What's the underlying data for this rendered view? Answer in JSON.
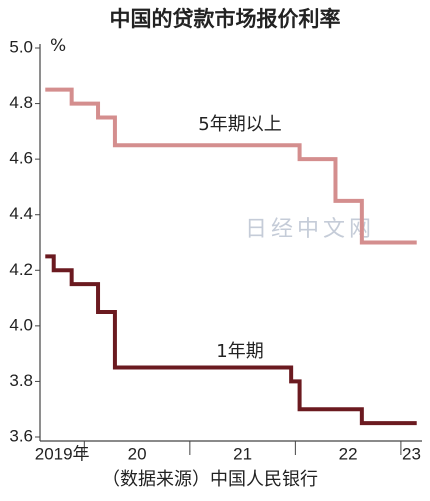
{
  "chart_data": {
    "type": "step",
    "title": "中国的贷款市场报价利率",
    "y_unit": "%",
    "source": "（数据来源）中国人民银行",
    "watermark": "日经中文网",
    "ylim": [
      3.6,
      5.0
    ],
    "yticks": [
      3.6,
      3.8,
      {
        "value": 4,
        "label": "4.0"
      },
      4.2,
      4.4,
      4.6,
      4.8,
      {
        "value": 5,
        "label": "5.0"
      }
    ],
    "xlim": [
      2019.58,
      2023.2
    ],
    "xticks": [
      2020,
      2021,
      2022,
      2023
    ],
    "xtick_labels": [
      {
        "value": 2019.79,
        "label": "2019年"
      },
      {
        "value": 2020.5,
        "label": "20"
      },
      {
        "value": 2021.5,
        "label": "21"
      },
      {
        "value": 2022.5,
        "label": "22"
      },
      {
        "value": 2023.1,
        "label": "23"
      }
    ],
    "series": [
      {
        "name": "5年期以上",
        "color": "#d48e8e",
        "x": [
          2019.63,
          2019.88,
          2020.13,
          2020.29,
          2022.04,
          2022.38,
          2022.63,
          2023.15
        ],
        "values": [
          4.85,
          4.8,
          4.75,
          4.65,
          4.6,
          4.45,
          4.3,
          4.3
        ]
      },
      {
        "name": "1年期",
        "color": "#6b1a20",
        "x": [
          2019.63,
          2019.71,
          2019.88,
          2020.13,
          2020.29,
          2021.96,
          2022.04,
          2022.63,
          2023.15
        ],
        "values": [
          4.25,
          4.2,
          4.15,
          4.05,
          3.85,
          3.8,
          3.7,
          3.65,
          3.65
        ]
      }
    ]
  }
}
